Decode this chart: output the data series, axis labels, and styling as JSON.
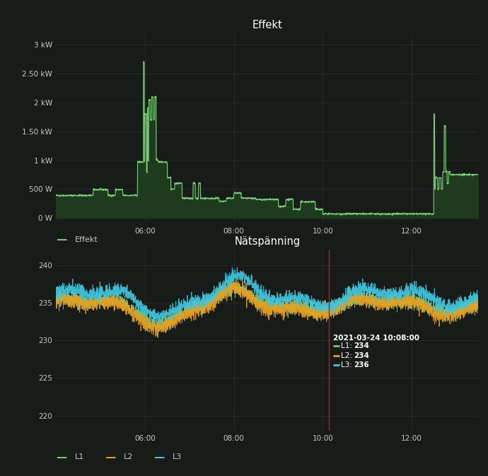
{
  "bg_color": "#181c18",
  "plot_bg_color": "#181c18",
  "grid_color": "#2a352a",
  "text_color": "#c8c8c8",
  "title_color": "#ffffff",
  "fig_width": 6.9,
  "fig_height": 6.73,
  "effekt_title": "Effekt",
  "effekt_ylabel_ticks": [
    "0 W",
    "500 W",
    "1 kW",
    "1.50 kW",
    "2 kW",
    "2.50 kW",
    "3 kW"
  ],
  "effekt_yticks": [
    0,
    500,
    1000,
    1500,
    2000,
    2500,
    3000
  ],
  "effekt_ylim": [
    -100,
    3200
  ],
  "effekt_xticks_labels": [
    "06:00",
    "08:00",
    "10:00",
    "12:00"
  ],
  "effekt_color": "#7dc87d",
  "effekt_fill_color": "#1e3b1e",
  "effekt_legend_label": "Effekt",
  "nats_title": "Nätspänning",
  "nats_yticks": [
    220,
    225,
    230,
    235,
    240
  ],
  "nats_ylim": [
    218,
    242
  ],
  "nats_xticks_labels": [
    "06:00",
    "08:00",
    "10:00",
    "12:00"
  ],
  "l1_color": "#7dc87d",
  "l2_color": "#e8a020",
  "l3_color": "#40c8e0",
  "tooltip_date": "2021-03-24 10:08:00",
  "tooltip_l1": "234",
  "tooltip_l2": "234",
  "tooltip_l3": "236",
  "red_line_color": "#cc1111"
}
